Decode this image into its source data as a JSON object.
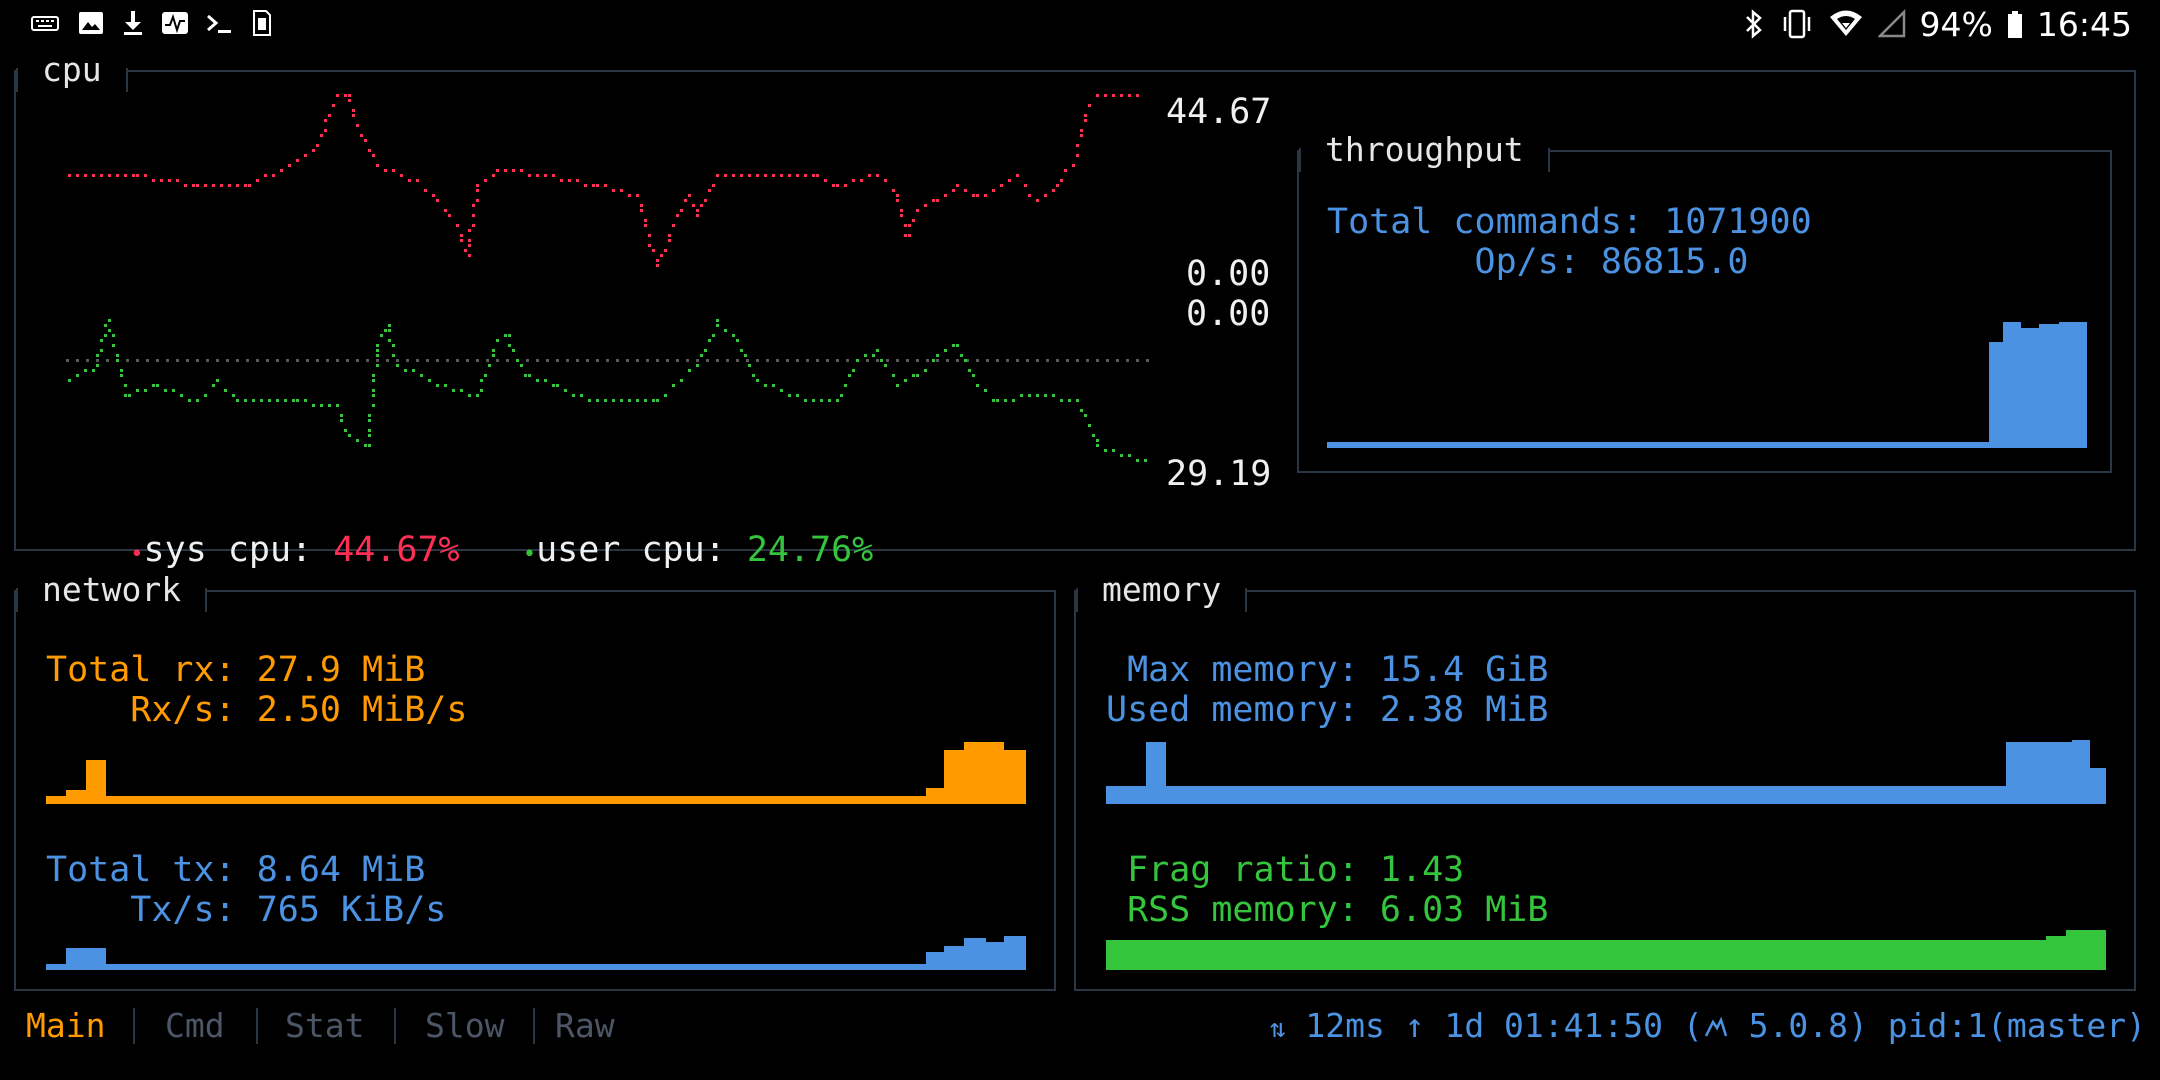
{
  "status_bar": {
    "left_icons": [
      "keyboard-icon",
      "image-icon",
      "download-icon",
      "activity-icon",
      "terminal-icon",
      "sim-card-icon"
    ],
    "battery": "94%",
    "time": "16:45",
    "right_icons": [
      "bluetooth-icon",
      "vibrate-icon",
      "wifi-icon",
      "cell-signal-icon",
      "battery-icon"
    ]
  },
  "cpu": {
    "title": "cpu",
    "axis_top": "44.67",
    "axis_mid_top": "0.00",
    "axis_mid_bottom": "0.00",
    "axis_bottom": "29.19",
    "sys_label": "sys cpu: ",
    "sys_value": "44.67%",
    "user_label": "user cpu: ",
    "user_value": "24.76%",
    "bullet": "•",
    "colors": {
      "sys": "#ff2e55",
      "user": "#35c53c"
    }
  },
  "throughput": {
    "title": "throughput",
    "total_commands_line": "Total commands: 1071900",
    "ops_line": "       Op/s: 86815.0"
  },
  "network": {
    "title": "network",
    "total_rx_line": "Total rx: 27.9 MiB",
    "rx_s_line": "    Rx/s: 2.50 MiB/s",
    "total_tx_line": "Total tx: 8.64 MiB",
    "tx_s_line": "    Tx/s: 765 KiB/s"
  },
  "memory": {
    "title": "memory",
    "max_memory_line": " Max memory: 15.4 GiB",
    "used_memory_line": "Used memory: 2.38 MiB",
    "frag_ratio_line": " Frag ratio: 1.43",
    "rss_memory_line": " RSS memory: 6.03 MiB"
  },
  "tabs": [
    {
      "label": "Main",
      "active": true
    },
    {
      "label": "Cmd",
      "active": false
    },
    {
      "label": "Stat",
      "active": false
    },
    {
      "label": "Slow",
      "active": false
    },
    {
      "label": "Raw",
      "active": false
    }
  ],
  "footer": {
    "sort_icon": "⇅",
    "latency": "12ms",
    "uptime_arrow": "↑",
    "uptime": "1d 01:41:50",
    "version_open": "(",
    "version": "5.0.8)",
    "pid": "pid:1(master)"
  },
  "colors": {
    "accent_blue": "#4b93e2",
    "accent_orange": "#ff9a00",
    "accent_green": "#35c53c",
    "border": "#2b3644"
  }
}
